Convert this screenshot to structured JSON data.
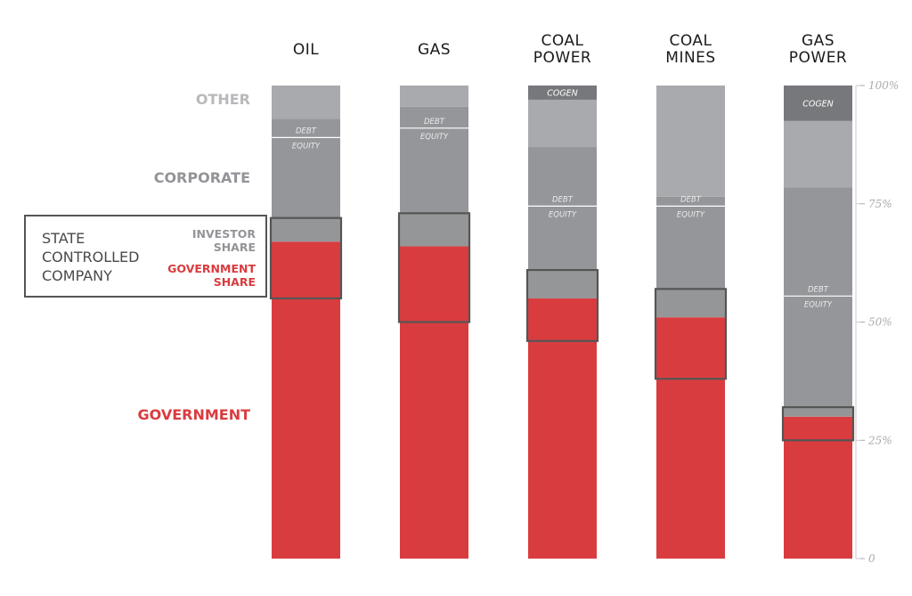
{
  "chart_data": {
    "type": "stacked-bar",
    "title": "",
    "categories": [
      "OIL",
      "GAS",
      "COAL\nPOWER",
      "COAL\nMINES",
      "GAS\nPOWER"
    ],
    "y_axis": {
      "min": 0,
      "max": 100,
      "ticks": [
        "100%",
        "75%",
        "50%",
        "25%",
        "0"
      ]
    },
    "layers": [
      "Government",
      "Government share (state controlled company)",
      "Investor share (state controlled company)",
      "Corporate equity",
      "Corporate debt",
      "Other",
      "Cogen"
    ],
    "colors": {
      "government": "#d93c3f",
      "sc_investor": "#959698",
      "corporate": "#95969a",
      "other": "#a9aaad",
      "cogen": "#77787b",
      "box": "#555555",
      "divider": "#ffffff"
    },
    "series": [
      {
        "name": "OIL",
        "segments": [
          {
            "kind": "government",
            "from": 0,
            "to": 67
          },
          {
            "kind": "sc_investor",
            "from": 67,
            "to": 72
          },
          {
            "kind": "corporate",
            "from": 72,
            "to": 93
          },
          {
            "kind": "other",
            "from": 93,
            "to": 100
          }
        ],
        "debt_equity_split": 89,
        "sc_box": [
          55,
          72
        ],
        "cogen_label": ""
      },
      {
        "name": "GAS",
        "segments": [
          {
            "kind": "government",
            "from": 0,
            "to": 66
          },
          {
            "kind": "sc_investor",
            "from": 66,
            "to": 73
          },
          {
            "kind": "corporate",
            "from": 73,
            "to": 95.5
          },
          {
            "kind": "other",
            "from": 95.5,
            "to": 100
          }
        ],
        "debt_equity_split": 91,
        "sc_box": [
          50,
          73
        ],
        "cogen_label": ""
      },
      {
        "name": "COAL POWER",
        "segments": [
          {
            "kind": "government",
            "from": 0,
            "to": 55
          },
          {
            "kind": "sc_investor",
            "from": 55,
            "to": 61
          },
          {
            "kind": "corporate",
            "from": 61,
            "to": 87
          },
          {
            "kind": "other",
            "from": 87,
            "to": 97
          },
          {
            "kind": "cogen",
            "from": 97,
            "to": 100
          }
        ],
        "debt_equity_split": 74.5,
        "sc_box": [
          46,
          61
        ],
        "cogen_label": "COGEN"
      },
      {
        "name": "COAL MINES",
        "segments": [
          {
            "kind": "government",
            "from": 0,
            "to": 51
          },
          {
            "kind": "sc_investor",
            "from": 51,
            "to": 57
          },
          {
            "kind": "corporate",
            "from": 57,
            "to": 76.5
          },
          {
            "kind": "other",
            "from": 76.5,
            "to": 100
          }
        ],
        "debt_equity_split": 74.5,
        "sc_box": [
          38,
          57
        ],
        "cogen_label": ""
      },
      {
        "name": "GAS POWER",
        "segments": [
          {
            "kind": "government",
            "from": 0,
            "to": 30
          },
          {
            "kind": "sc_investor",
            "from": 30,
            "to": 32
          },
          {
            "kind": "corporate",
            "from": 32,
            "to": 78.5
          },
          {
            "kind": "other",
            "from": 78.5,
            "to": 92.5
          },
          {
            "kind": "cogen",
            "from": 92.5,
            "to": 100
          }
        ],
        "debt_equity_split": 55.5,
        "sc_box": [
          25,
          32
        ],
        "cogen_label": "COGEN"
      }
    ],
    "in_bar_labels": {
      "debt": "DEBT",
      "equity": "EQUITY"
    },
    "band_labels": {
      "other": "OTHER",
      "corporate": "CORPORATE",
      "government": "GOVERNMENT",
      "investor_share": [
        "INVESTOR",
        "SHARE"
      ],
      "government_share": [
        "GOVERNMENT",
        "SHARE"
      ],
      "state_controlled_company": [
        "STATE",
        "CONTROLLED",
        "COMPANY"
      ]
    }
  }
}
